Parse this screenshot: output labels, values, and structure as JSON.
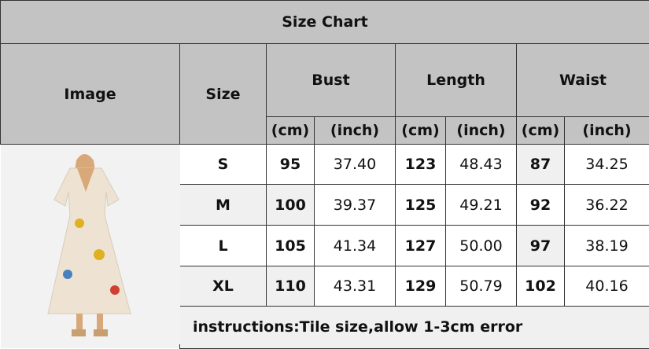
{
  "title": "Size Chart",
  "headers": {
    "image": "Image",
    "size": "Size",
    "groups": [
      "Bust",
      "Length",
      "Waist"
    ],
    "units": [
      "(cm)",
      "(inch)",
      "(cm)",
      "(inch)",
      "(cm)",
      "(inch)"
    ]
  },
  "rows": [
    {
      "size": "S",
      "values": [
        "95",
        "37.40",
        "123",
        "48.43",
        "87",
        "34.25"
      ]
    },
    {
      "size": "M",
      "values": [
        "100",
        "39.37",
        "125",
        "49.21",
        "92",
        "36.22"
      ]
    },
    {
      "size": "L",
      "values": [
        "105",
        "41.34",
        "127",
        "50.00",
        "97",
        "38.19"
      ]
    },
    {
      "size": "XL",
      "values": [
        "110",
        "43.31",
        "129",
        "50.79",
        "102",
        "40.16"
      ]
    }
  ],
  "instructions": "instructions:Tile size,allow 1-3cm error",
  "colors": {
    "header": "#c3c3c3",
    "light": "#f0f0f0"
  }
}
